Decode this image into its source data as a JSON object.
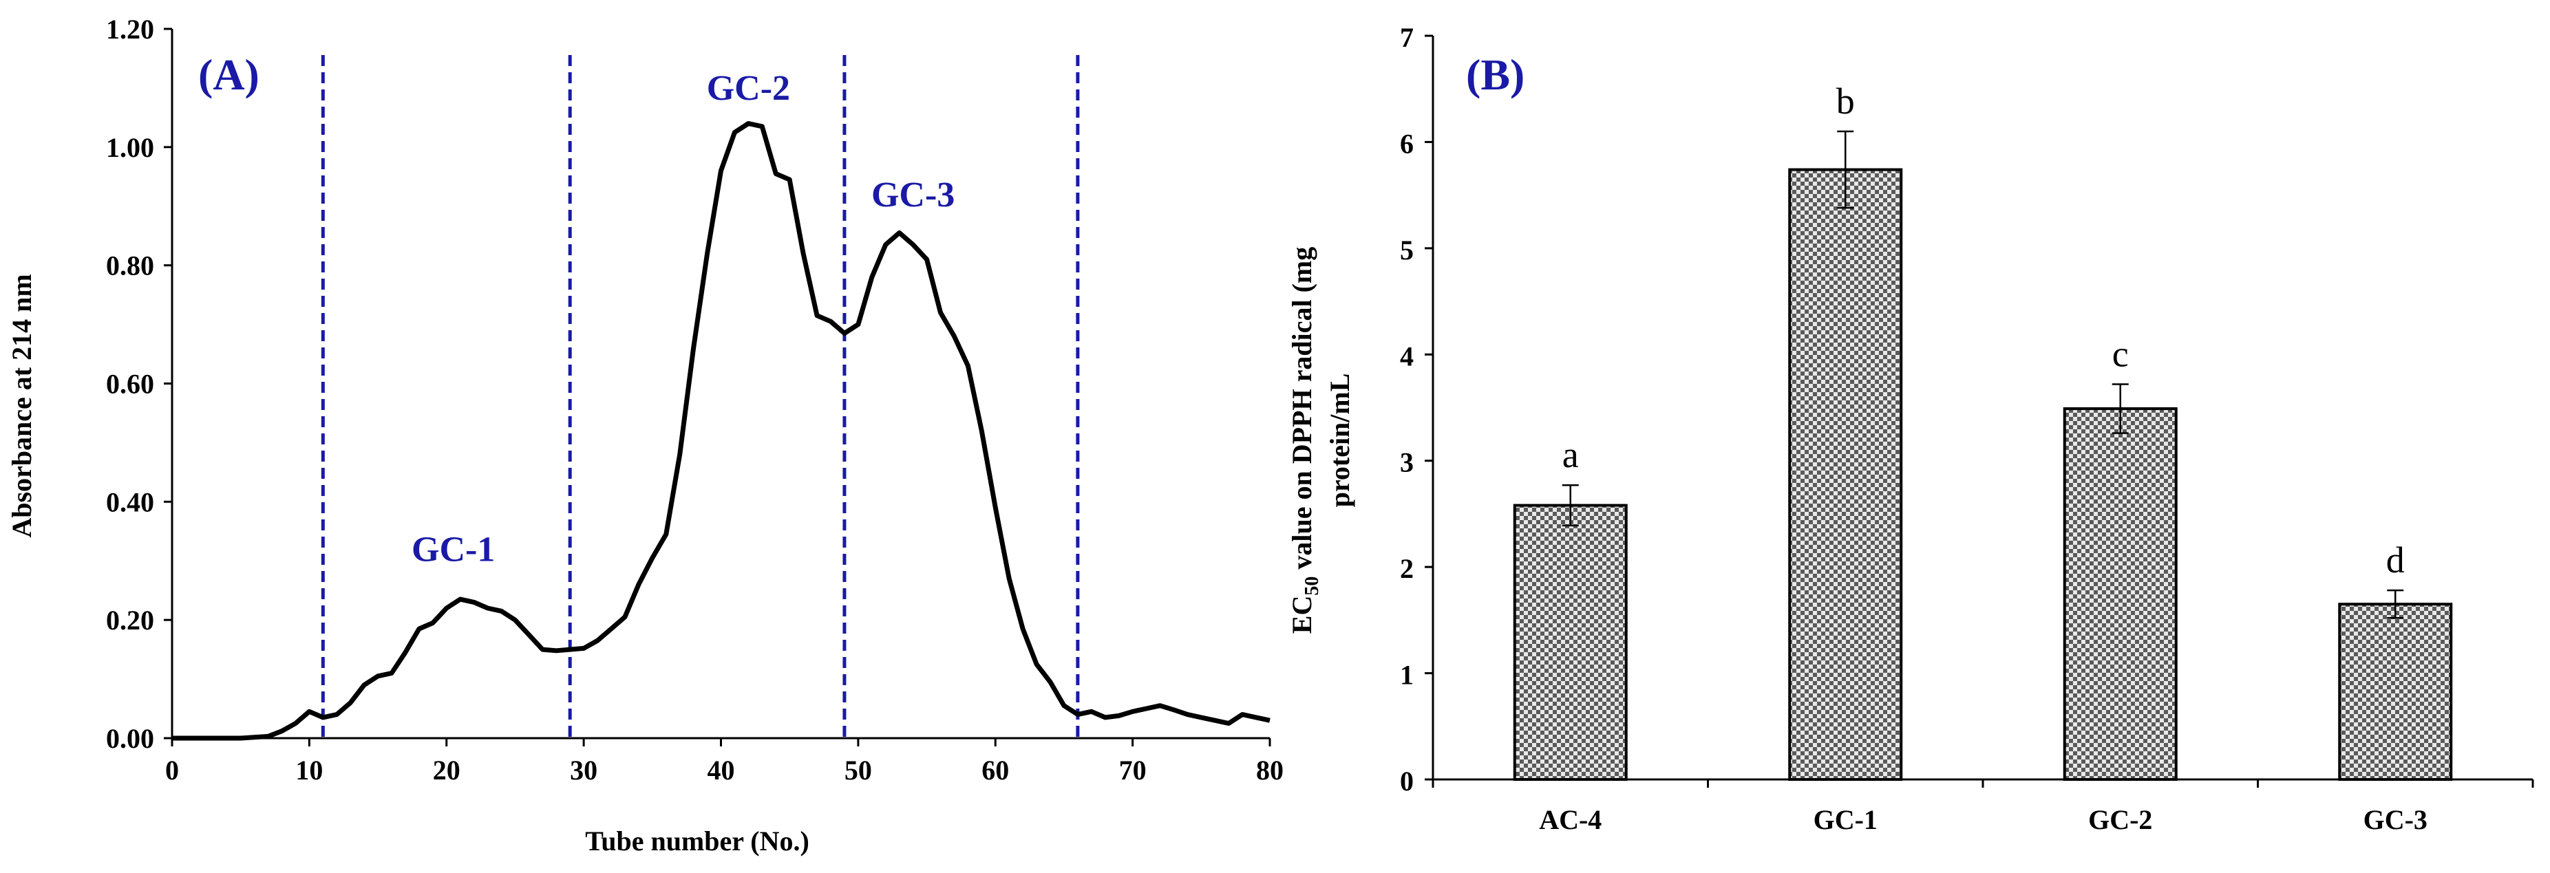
{
  "chart_data": [
    {
      "type": "line",
      "panel_label": "(A)",
      "xlabel": "Tube number (No.)",
      "ylabel": "Absorbance at 214 nm",
      "xlim": [
        0,
        80
      ],
      "ylim": [
        0,
        1.2
      ],
      "x_ticks": [
        "0",
        "10",
        "20",
        "30",
        "40",
        "50",
        "60",
        "70",
        "80"
      ],
      "y_ticks": [
        "0.00",
        "0.20",
        "0.40",
        "0.60",
        "0.80",
        "1.00",
        "1.20"
      ],
      "series": [
        {
          "name": "Absorbance",
          "x": [
            0,
            5,
            7,
            8,
            9,
            10,
            11,
            12,
            13,
            14,
            15,
            16,
            17,
            18,
            19,
            20,
            21,
            22,
            23,
            24,
            25,
            26,
            27,
            28,
            29,
            30,
            31,
            32,
            33,
            34,
            35,
            36,
            37,
            38,
            39,
            40,
            41,
            42,
            43,
            44,
            45,
            46,
            47,
            48,
            49,
            50,
            51,
            52,
            53,
            54,
            55,
            56,
            57,
            58,
            59,
            60,
            61,
            62,
            63,
            64,
            65,
            66,
            67,
            68,
            69,
            70,
            71,
            72,
            73,
            74,
            75,
            76,
            77,
            78,
            79,
            80
          ],
          "y": [
            0,
            0,
            0.003,
            0.012,
            0.025,
            0.045,
            0.035,
            0.04,
            0.06,
            0.09,
            0.105,
            0.11,
            0.145,
            0.185,
            0.195,
            0.22,
            0.235,
            0.23,
            0.22,
            0.215,
            0.2,
            0.175,
            0.15,
            0.148,
            0.15,
            0.152,
            0.165,
            0.185,
            0.205,
            0.26,
            0.305,
            0.345,
            0.48,
            0.66,
            0.82,
            0.96,
            1.025,
            1.04,
            1.035,
            0.955,
            0.945,
            0.82,
            0.715,
            0.705,
            0.685,
            0.7,
            0.78,
            0.835,
            0.855,
            0.835,
            0.81,
            0.72,
            0.68,
            0.63,
            0.52,
            0.39,
            0.27,
            0.185,
            0.125,
            0.095,
            0.055,
            0.04,
            0.045,
            0.035,
            0.038,
            0.045,
            0.05,
            0.055,
            0.048,
            0.04,
            0.035,
            0.03,
            0.025,
            0.04,
            0.035,
            0.03
          ]
        }
      ],
      "separators_x": [
        11,
        29,
        49,
        66
      ],
      "peak_labels": [
        {
          "text": "GC-1",
          "x": 20.5,
          "y": 0.3
        },
        {
          "text": "GC-2",
          "x": 42,
          "y": 1.08
        },
        {
          "text": "GC-3",
          "x": 54,
          "y": 0.9
        }
      ],
      "grid": false
    },
    {
      "type": "bar",
      "panel_label": "(B)",
      "categories": [
        "AC-4",
        "GC-1",
        "GC-2",
        "GC-3"
      ],
      "values": [
        2.58,
        5.74,
        3.49,
        1.65
      ],
      "errors": [
        0.19,
        0.36,
        0.23,
        0.13
      ],
      "significance": [
        "a",
        "b",
        "c",
        "d"
      ],
      "xlabel": "",
      "ylabel_line1_prefix": "EC",
      "ylabel_line1_subscript": "50",
      "ylabel_line1_suffix": " value on DPPH radical (mg",
      "ylabel_line2": "protein/mL",
      "ylim": [
        0,
        7
      ],
      "y_ticks": [
        "0",
        "1",
        "2",
        "3",
        "4",
        "5",
        "6",
        "7"
      ],
      "bar_pattern": "checkered",
      "grid": false
    }
  ],
  "colors": {
    "line": "#000000",
    "separator": "#1a1aa6",
    "label": "#1a1aa6",
    "bar_fill_a": "#5a5a5a",
    "bar_fill_b": "#e8e8e8"
  }
}
